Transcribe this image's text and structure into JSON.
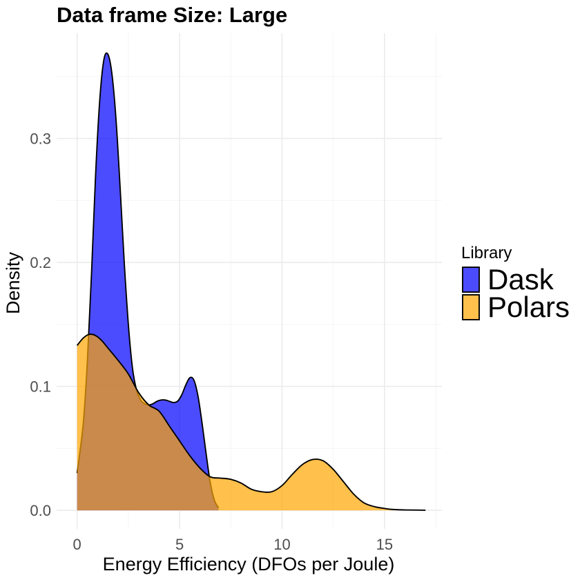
{
  "chart_data": {
    "type": "area",
    "subtype": "density",
    "title": "Data frame Size: Large",
    "xlabel": "Energy Efficiency (DFOs per Joule)",
    "ylabel": "Density",
    "xlim": [
      -1,
      17.8
    ],
    "ylim": [
      -0.015,
      0.385
    ],
    "x_ticks": [
      0,
      5,
      10,
      15
    ],
    "y_ticks": [
      0.0,
      0.1,
      0.2,
      0.3
    ],
    "x_tick_labels": [
      "0",
      "5",
      "10",
      "15"
    ],
    "y_tick_labels": [
      "0.0",
      "0.1",
      "0.2",
      "0.3"
    ],
    "grid": true,
    "legend": {
      "title": "Library",
      "position": "right"
    },
    "series": [
      {
        "name": "Dask",
        "color": "#0000FF",
        "opacity": 0.7,
        "x": [
          0.0,
          0.3,
          0.5,
          0.7,
          0.9,
          1.1,
          1.3,
          1.5,
          1.7,
          1.9,
          2.1,
          2.3,
          2.5,
          2.7,
          2.9,
          3.1,
          3.3,
          3.5,
          3.7,
          3.9,
          4.1,
          4.3,
          4.5,
          4.7,
          4.9,
          5.1,
          5.3,
          5.5,
          5.7,
          5.9,
          6.1,
          6.3,
          6.5,
          6.7,
          6.9
        ],
        "y": [
          0.03,
          0.07,
          0.12,
          0.19,
          0.27,
          0.33,
          0.363,
          0.368,
          0.352,
          0.315,
          0.26,
          0.2,
          0.15,
          0.115,
          0.097,
          0.089,
          0.086,
          0.085,
          0.086,
          0.088,
          0.089,
          0.089,
          0.088,
          0.087,
          0.088,
          0.093,
          0.101,
          0.107,
          0.105,
          0.092,
          0.07,
          0.045,
          0.022,
          0.008,
          0.002
        ]
      },
      {
        "name": "Polars",
        "color": "#FFA500",
        "opacity": 0.7,
        "x": [
          0.0,
          0.3,
          0.6,
          0.9,
          1.2,
          1.5,
          2.0,
          2.5,
          3.0,
          3.5,
          4.0,
          4.5,
          5.0,
          5.5,
          6.0,
          6.5,
          7.0,
          7.5,
          8.0,
          8.5,
          9.0,
          9.5,
          10.0,
          10.5,
          11.0,
          11.5,
          12.0,
          12.5,
          13.0,
          13.5,
          14.0,
          14.5,
          15.0,
          15.5,
          16.0,
          17.0
        ],
        "y": [
          0.133,
          0.139,
          0.142,
          0.141,
          0.137,
          0.131,
          0.121,
          0.11,
          0.095,
          0.085,
          0.08,
          0.068,
          0.056,
          0.044,
          0.034,
          0.027,
          0.026,
          0.025,
          0.022,
          0.017,
          0.015,
          0.015,
          0.02,
          0.029,
          0.037,
          0.041,
          0.04,
          0.033,
          0.023,
          0.013,
          0.006,
          0.003,
          0.0015,
          0.0006,
          0.0003,
          0.0001
        ]
      }
    ]
  }
}
